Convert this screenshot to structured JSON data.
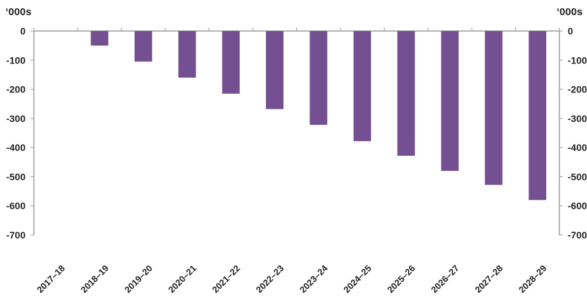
{
  "chart_data": {
    "type": "bar",
    "categories": [
      "2017–18",
      "2018–19",
      "2019–20",
      "2020–21",
      "2021–22",
      "2022–23",
      "2023–24",
      "2024–25",
      "2025–26",
      "2026–27",
      "2027–28",
      "2028–29"
    ],
    "values": [
      0,
      -50,
      -105,
      -160,
      -215,
      -268,
      -322,
      -378,
      -428,
      -480,
      -528,
      -580
    ],
    "y_unit_left": "‘000s",
    "y_unit_right": "‘000s",
    "ylim": [
      -700,
      0
    ],
    "yticks": [
      0,
      -100,
      -200,
      -300,
      -400,
      -500,
      -600,
      -700
    ],
    "ytick_labels": [
      "0",
      "-100",
      "-200",
      "-300",
      "-400",
      "-500",
      "-600",
      "-700"
    ],
    "grid": false,
    "bar_color": "#744f91",
    "axis_color": "#9a9a9a"
  }
}
